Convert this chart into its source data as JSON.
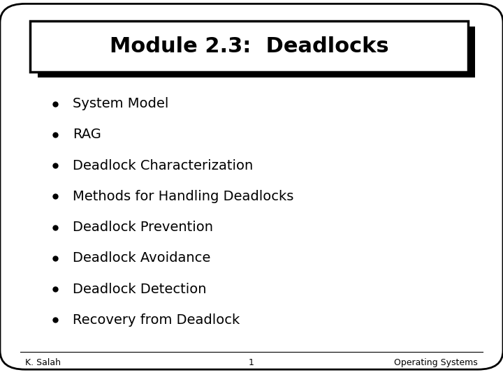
{
  "title": "Module 2.3:  Deadlocks",
  "bullet_items": [
    "System Model",
    "RAG",
    "Deadlock Characterization",
    "Methods for Handling Deadlocks",
    "Deadlock Prevention",
    "Deadlock Avoidance",
    "Deadlock Detection",
    "Recovery from Deadlock"
  ],
  "footer_left": "K. Salah",
  "footer_center": "1",
  "footer_right": "Operating Systems",
  "bg_color": "#ffffff",
  "slide_bg": "#ffffff",
  "border_color": "#000000",
  "title_box_bg": "#ffffff",
  "title_fontsize": 22,
  "bullet_fontsize": 14,
  "footer_fontsize": 9,
  "text_color": "#000000"
}
